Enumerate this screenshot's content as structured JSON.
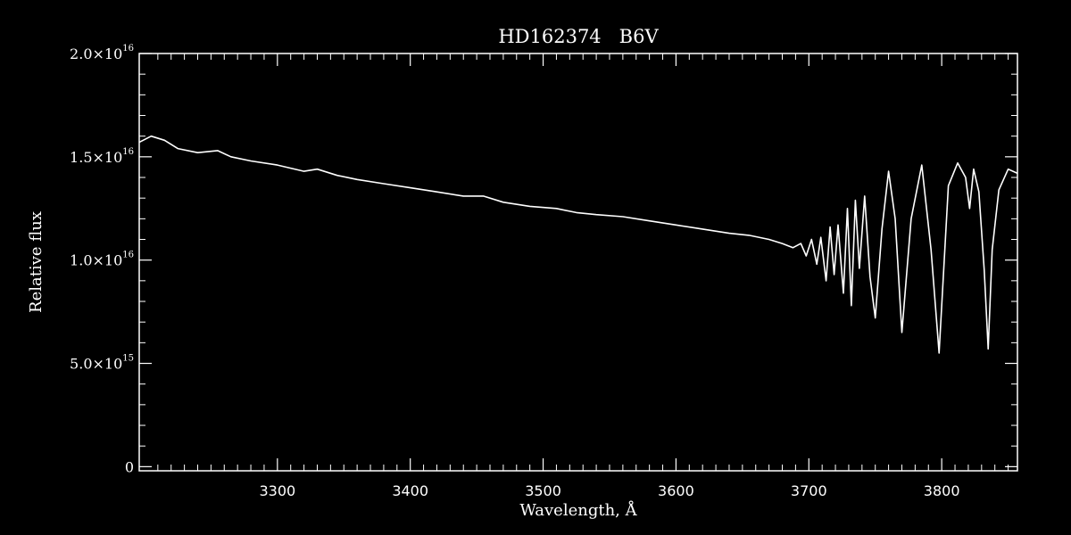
{
  "chart_data": {
    "type": "line",
    "title": "HD162374   B6V",
    "xlabel": "Wavelength, Å",
    "ylabel": "Relative flux",
    "xlim": [
      3196,
      3857
    ],
    "ylim": [
      -200000000000000.0,
      2e+16
    ],
    "x_ticks": [
      3300,
      3400,
      3500,
      3600,
      3700,
      3800
    ],
    "x_tick_labels": [
      "3300",
      "3400",
      "3500",
      "3600",
      "3700",
      "3800"
    ],
    "y_ticks": [
      0,
      5000000000000000.0,
      1e+16,
      1.5e+16,
      2e+16
    ],
    "y_tick_labels": [
      {
        "mantissa": "0",
        "exponent": ""
      },
      {
        "mantissa": "5.0×10",
        "exponent": "15"
      },
      {
        "mantissa": "1.0×10",
        "exponent": "16"
      },
      {
        "mantissa": "1.5×10",
        "exponent": "16"
      },
      {
        "mantissa": "2.0×10",
        "exponent": "16"
      }
    ],
    "grid": false,
    "colors": {
      "background": "#000000",
      "foreground": "#ffffff"
    },
    "series": [
      {
        "x": [
          3196,
          3205,
          3215,
          3225,
          3240,
          3255,
          3265,
          3280,
          3300,
          3320,
          3330,
          3345,
          3360,
          3380,
          3400,
          3420,
          3440,
          3455,
          3470,
          3490,
          3510,
          3525,
          3540,
          3560,
          3580,
          3600,
          3620,
          3640,
          3655,
          3670,
          3680,
          3688,
          3694,
          3698,
          3702,
          3706,
          3709,
          3713,
          3716,
          3719,
          3722,
          3726,
          3729,
          3732,
          3735,
          3738,
          3742,
          3746,
          3750,
          3755,
          3760,
          3765,
          3770,
          3777,
          3785,
          3792,
          3798,
          3805,
          3812,
          3818,
          3821,
          3824,
          3828,
          3832,
          3835,
          3838,
          3843,
          3850,
          3857
        ],
        "y": [
          1.57e+16,
          1.6e+16,
          1.58e+16,
          1.54e+16,
          1.52e+16,
          1.53e+16,
          1.5e+16,
          1.48e+16,
          1.46e+16,
          1.43e+16,
          1.44e+16,
          1.41e+16,
          1.39e+16,
          1.37e+16,
          1.35e+16,
          1.33e+16,
          1.31e+16,
          1.31e+16,
          1.28e+16,
          1.26e+16,
          1.25e+16,
          1.23e+16,
          1.22e+16,
          1.21e+16,
          1.19e+16,
          1.17e+16,
          1.15e+16,
          1.13e+16,
          1.12e+16,
          1.1e+16,
          1.08e+16,
          1.06e+16,
          1.08e+16,
          1.02e+16,
          1.1e+16,
          9800000000000000.0,
          1.11e+16,
          9000000000000000.0,
          1.16e+16,
          9300000000000000.0,
          1.17e+16,
          8400000000000000.0,
          1.25e+16,
          7800000000000000.0,
          1.29e+16,
          9600000000000000.0,
          1.31e+16,
          9200000000000000.0,
          7200000000000000.0,
          1.15e+16,
          1.43e+16,
          1.2e+16,
          6500000000000000.0,
          1.2e+16,
          1.46e+16,
          1.05e+16,
          5500000000000000.0,
          1.36e+16,
          1.47e+16,
          1.4e+16,
          1.25e+16,
          1.44e+16,
          1.33e+16,
          9500000000000000.0,
          5700000000000000.0,
          1.05e+16,
          1.34e+16,
          1.44e+16,
          1.42e+16
        ]
      }
    ]
  }
}
